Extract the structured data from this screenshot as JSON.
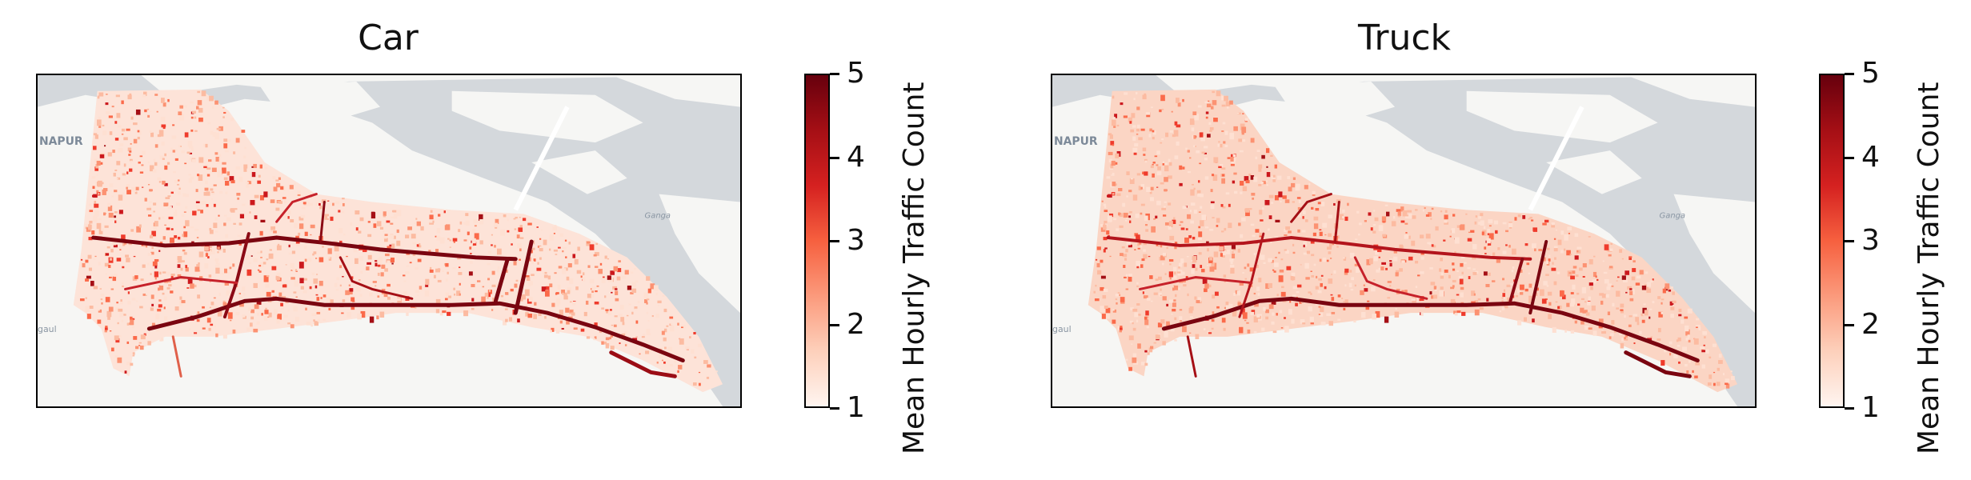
{
  "chart_data": [
    {
      "type": "heatmap",
      "title": "Car",
      "colorbar": {
        "label": "Mean Hourly Traffic Count",
        "min": 1,
        "max": 5,
        "ticks": [
          "1",
          "2",
          "3",
          "4",
          "5"
        ],
        "colormap": "Reds"
      },
      "basemap_labels": [
        "NAPUR",
        "Ganga",
        "gaul"
      ]
    },
    {
      "type": "heatmap",
      "title": "Truck",
      "colorbar": {
        "label": "Mean Hourly Traffic Count",
        "min": 1,
        "max": 5,
        "ticks": [
          "1",
          "2",
          "3",
          "4",
          "5"
        ],
        "colormap": "Reds"
      },
      "basemap_labels": [
        "NAPUR",
        "Ganga",
        "gaul"
      ]
    }
  ],
  "colors": {
    "river": "#d4d8dc",
    "land": "#f6f6f4",
    "road_dark": "#7a0510",
    "fill_light": "#fde3d8"
  }
}
